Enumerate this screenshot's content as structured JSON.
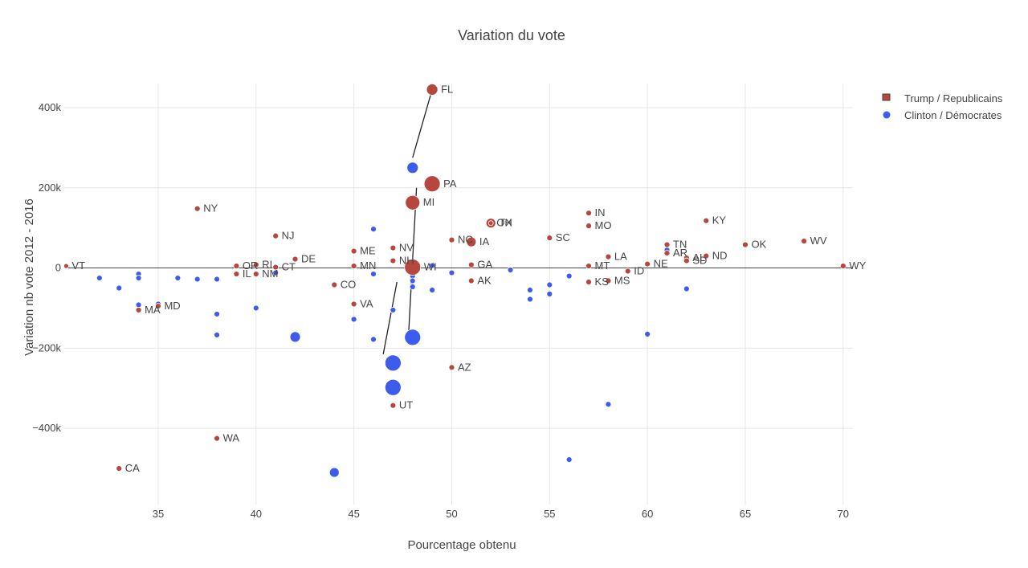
{
  "chart_data": {
    "type": "scatter",
    "title": "Variation du vote",
    "xlabel": "Pourcentage obtenu",
    "ylabel": "Variation nb vote 2012 - 2016",
    "xlim": [
      30.2,
      70.5
    ],
    "ylim": [
      -590000,
      460000
    ],
    "xticks": [
      {
        "value": 35,
        "label": "35"
      },
      {
        "value": 40,
        "label": "40"
      },
      {
        "value": 45,
        "label": "45"
      },
      {
        "value": 50,
        "label": "50"
      },
      {
        "value": 55,
        "label": "55"
      },
      {
        "value": 60,
        "label": "60"
      },
      {
        "value": 65,
        "label": "65"
      },
      {
        "value": 70,
        "label": "70"
      }
    ],
    "yticks": [
      {
        "value": 400000,
        "label": "400k"
      },
      {
        "value": 200000,
        "label": "200k"
      },
      {
        "value": 0,
        "label": "0"
      },
      {
        "value": -200000,
        "label": "−200k"
      },
      {
        "value": -400000,
        "label": "−400k"
      }
    ],
    "legend": {
      "position": "top-right",
      "entries": [
        {
          "name": "Trump / Republicains",
          "color": "#b5473f"
        },
        {
          "name": "Clinton / Démocrates",
          "color": "#3d5bec"
        }
      ]
    },
    "series": [
      {
        "name": "Trump / Republicains",
        "color": "#b5473f",
        "points": [
          {
            "state": "FL",
            "x": 49,
            "y": 445000,
            "size": 7
          },
          {
            "state": "PA",
            "x": 49,
            "y": 210000,
            "size": 10
          },
          {
            "state": "MI",
            "x": 48,
            "y": 163000,
            "size": 9
          },
          {
            "state": "NY",
            "x": 37,
            "y": 148000,
            "size": 3.5
          },
          {
            "state": "NJ",
            "x": 41,
            "y": 80000,
            "size": 3.5
          },
          {
            "state": "TX",
            "x": 52,
            "y": 112000,
            "size": 6
          },
          {
            "state": "OH",
            "x": 52,
            "y": 112000,
            "size": 3
          },
          {
            "state": "IA",
            "x": 51,
            "y": 65000,
            "size": 6
          },
          {
            "state": "NC",
            "x": 50,
            "y": 70000,
            "size": 3.5
          },
          {
            "state": "SC",
            "x": 55,
            "y": 75000,
            "size": 3.5
          },
          {
            "state": "IN",
            "x": 57,
            "y": 137000,
            "size": 3.5
          },
          {
            "state": "MO",
            "x": 57,
            "y": 105000,
            "size": 3.5
          },
          {
            "state": "KY",
            "x": 63,
            "y": 118000,
            "size": 3.5
          },
          {
            "state": "OK",
            "x": 65,
            "y": 58000,
            "size": 3.5
          },
          {
            "state": "WV",
            "x": 68,
            "y": 67000,
            "size": 3.5
          },
          {
            "state": "TN",
            "x": 61,
            "y": 58000,
            "size": 3.5
          },
          {
            "state": "AR",
            "x": 61,
            "y": 37000,
            "size": 3.5
          },
          {
            "state": "AL",
            "x": 62,
            "y": 25000,
            "size": 3.5
          },
          {
            "state": "SD",
            "x": 62,
            "y": 18000,
            "size": 3.5
          },
          {
            "state": "ND",
            "x": 63,
            "y": 30000,
            "size": 3.5
          },
          {
            "state": "NE",
            "x": 60,
            "y": 10000,
            "size": 3.5
          },
          {
            "state": "LA",
            "x": 58,
            "y": 28000,
            "size": 3.5
          },
          {
            "state": "MT",
            "x": 57,
            "y": 5000,
            "size": 3.5
          },
          {
            "state": "ID",
            "x": 59,
            "y": -8000,
            "size": 3.5
          },
          {
            "state": "MS",
            "x": 58,
            "y": -32000,
            "size": 3.5
          },
          {
            "state": "KS",
            "x": 57,
            "y": -35000,
            "size": 3.5
          },
          {
            "state": "GA",
            "x": 51,
            "y": 8000,
            "size": 3.5
          },
          {
            "state": "AK",
            "x": 51,
            "y": -32000,
            "size": 3.5
          },
          {
            "state": "WI",
            "x": 48,
            "y": 2000,
            "size": 10
          },
          {
            "state": "NV",
            "x": 47,
            "y": 50000,
            "size": 3.5
          },
          {
            "state": "NH",
            "x": 47,
            "y": 18000,
            "size": 3.5
          },
          {
            "state": "ME",
            "x": 45,
            "y": 42000,
            "size": 3.5
          },
          {
            "state": "MN",
            "x": 45,
            "y": 5000,
            "size": 3.5
          },
          {
            "state": "DE",
            "x": 42,
            "y": 22000,
            "size": 3.5
          },
          {
            "state": "CT",
            "x": 41,
            "y": 2000,
            "size": 3.5
          },
          {
            "state": "RI",
            "x": 40,
            "y": 8000,
            "size": 3.5
          },
          {
            "state": "OR",
            "x": 39,
            "y": 5000,
            "size": 3.5
          },
          {
            "state": "NM",
            "x": 40,
            "y": -15000,
            "size": 3.5
          },
          {
            "state": "IL",
            "x": 39,
            "y": -15000,
            "size": 3.5
          },
          {
            "state": "VT",
            "x": 30.3,
            "y": 5000,
            "size": 3
          },
          {
            "state": "CO",
            "x": 44,
            "y": -42000,
            "size": 3.5
          },
          {
            "state": "VA",
            "x": 45,
            "y": -90000,
            "size": 3.5
          },
          {
            "state": "MD",
            "x": 35,
            "y": -95000,
            "size": 3.5
          },
          {
            "state": "MA",
            "x": 34,
            "y": -105000,
            "size": 3.5
          },
          {
            "state": "AZ",
            "x": 50,
            "y": -248000,
            "size": 3.5
          },
          {
            "state": "UT",
            "x": 47,
            "y": -343000,
            "size": 3.5
          },
          {
            "state": "WA",
            "x": 38,
            "y": -425000,
            "size": 3.5
          },
          {
            "state": "CA",
            "x": 33,
            "y": -500000,
            "size": 3.5
          },
          {
            "state": "WY",
            "x": 70,
            "y": 5000,
            "size": 3.5
          }
        ]
      },
      {
        "name": "Clinton / Démocrates",
        "color": "#3d5bec",
        "points": [
          {
            "x": 48,
            "y": 250000,
            "size": 7
          },
          {
            "x": 48,
            "y": -173000,
            "size": 10
          },
          {
            "x": 47,
            "y": -237000,
            "size": 10
          },
          {
            "x": 47,
            "y": -298000,
            "size": 10
          },
          {
            "x": 44,
            "y": -510000,
            "size": 6
          },
          {
            "x": 42,
            "y": -172000,
            "size": 6.5
          },
          {
            "x": 46,
            "y": 97000,
            "size": 3.5
          },
          {
            "x": 48,
            "y": -20000,
            "size": 3.5
          },
          {
            "x": 48,
            "y": -32000,
            "size": 3.5
          },
          {
            "x": 48,
            "y": -47000,
            "size": 3.5
          },
          {
            "x": 49,
            "y": 6000,
            "size": 3.5
          },
          {
            "x": 49,
            "y": -55000,
            "size": 3.5
          },
          {
            "x": 50,
            "y": -12000,
            "size": 3.5
          },
          {
            "x": 53,
            "y": -5000,
            "size": 3.5
          },
          {
            "x": 54,
            "y": -55000,
            "size": 3.5
          },
          {
            "x": 54,
            "y": -78000,
            "size": 3.5
          },
          {
            "x": 55,
            "y": -42000,
            "size": 3.5
          },
          {
            "x": 55,
            "y": -65000,
            "size": 3.5
          },
          {
            "x": 56,
            "y": -20000,
            "size": 3.5
          },
          {
            "x": 56,
            "y": -478000,
            "size": 3.5
          },
          {
            "x": 58,
            "y": -340000,
            "size": 3.5
          },
          {
            "x": 60,
            "y": -165000,
            "size": 3.5
          },
          {
            "x": 61,
            "y": 45000,
            "size": 3.5
          },
          {
            "x": 62,
            "y": -52000,
            "size": 3.5
          },
          {
            "x": 46,
            "y": -15000,
            "size": 3.5
          },
          {
            "x": 46,
            "y": -178000,
            "size": 3.5
          },
          {
            "x": 47,
            "y": -105000,
            "size": 3.5
          },
          {
            "x": 45,
            "y": -128000,
            "size": 3.5
          },
          {
            "x": 41,
            "y": -12000,
            "size": 3.5
          },
          {
            "x": 40,
            "y": -100000,
            "size": 3.5
          },
          {
            "x": 38,
            "y": -28000,
            "size": 3.5
          },
          {
            "x": 38,
            "y": -115000,
            "size": 3.5
          },
          {
            "x": 38,
            "y": -167000,
            "size": 3.5
          },
          {
            "x": 37,
            "y": -28000,
            "size": 3.5
          },
          {
            "x": 36,
            "y": -25000,
            "size": 3.5
          },
          {
            "x": 35,
            "y": -90000,
            "size": 3.5
          },
          {
            "x": 34,
            "y": -15000,
            "size": 3.5
          },
          {
            "x": 34,
            "y": -25000,
            "size": 3.5
          },
          {
            "x": 34,
            "y": -92000,
            "size": 3.5
          },
          {
            "x": 33,
            "y": -50000,
            "size": 3.5
          },
          {
            "x": 32,
            "y": -25000,
            "size": 3.5
          }
        ]
      }
    ],
    "annotations": [
      {
        "from": [
          49,
          445000
        ],
        "to": [
          48,
          275000
        ]
      },
      {
        "from": [
          48.2,
          200000
        ],
        "to": [
          47.8,
          -160000
        ]
      },
      {
        "from": [
          47.2,
          -35000
        ],
        "to": [
          46.5,
          -215000
        ]
      }
    ]
  }
}
